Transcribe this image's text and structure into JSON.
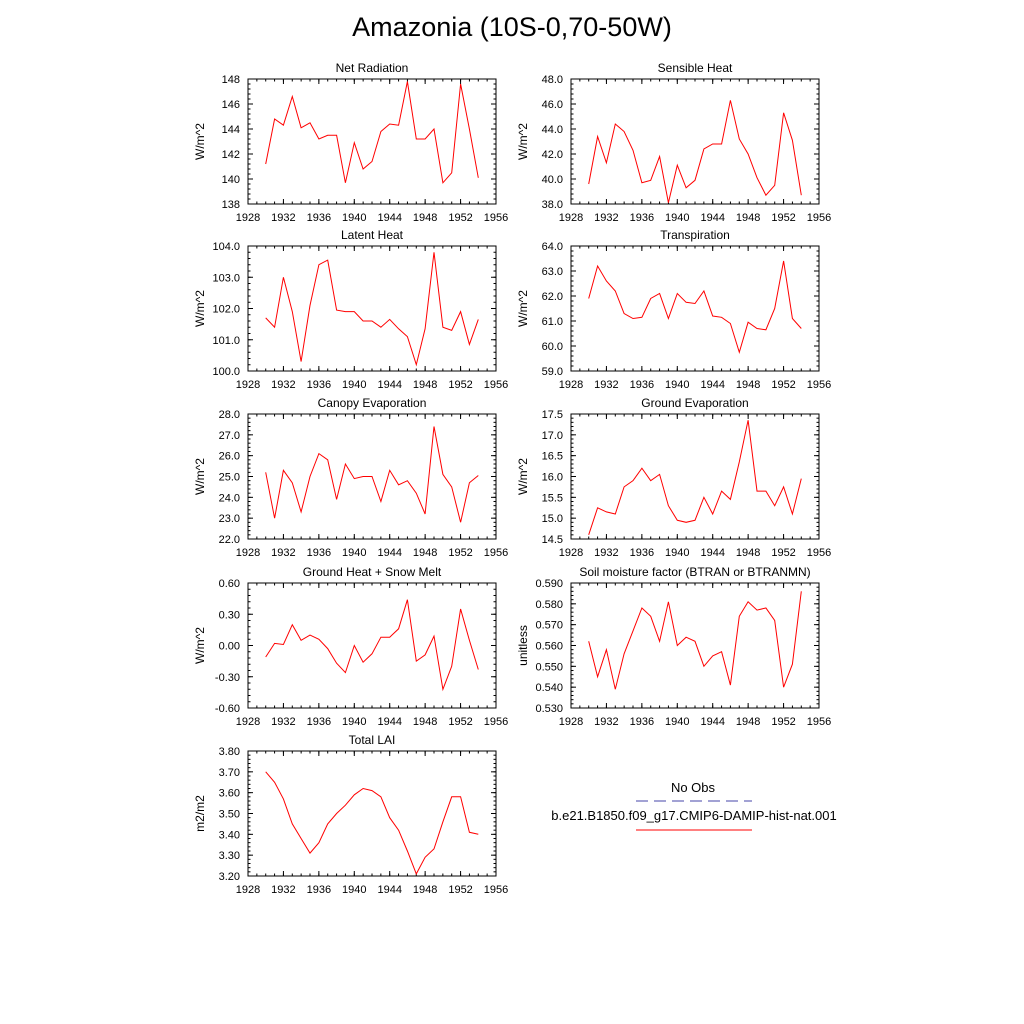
{
  "title": "Amazonia (10S-0,70-50W)",
  "colors": {
    "model": "#ff0000",
    "obs": "#4444aa",
    "axis": "#000000"
  },
  "legend": {
    "obs_label": "No Obs",
    "model_label": "b.e21.B1850.f09_g17.CMIP6-DAMIP-hist-nat.001"
  },
  "chart_data": [
    {
      "type": "line",
      "title": "Net Radiation",
      "ylabel": "W/m^2",
      "xlim": [
        1928,
        1956
      ],
      "ylim": [
        138,
        148
      ],
      "xticks": [
        "1928",
        "1932",
        "1936",
        "1940",
        "1944",
        "1948",
        "1952",
        "1956"
      ],
      "yticks": [
        "138",
        "140",
        "142",
        "144",
        "146",
        "148"
      ],
      "x": [
        1930,
        1931,
        1932,
        1933,
        1934,
        1935,
        1936,
        1937,
        1938,
        1939,
        1940,
        1941,
        1942,
        1943,
        1944,
        1945,
        1946,
        1947,
        1948,
        1949,
        1950,
        1951,
        1952,
        1953,
        1954
      ],
      "series": [
        {
          "values": [
            141.2,
            144.8,
            144.3,
            146.6,
            144.1,
            144.5,
            143.2,
            143.5,
            143.5,
            139.7,
            142.9,
            140.8,
            141.4,
            143.8,
            144.4,
            144.3,
            147.8,
            143.2,
            143.2,
            144.0,
            139.7,
            140.5,
            147.6,
            144.0,
            140.1
          ]
        }
      ]
    },
    {
      "type": "line",
      "title": "Sensible Heat",
      "ylabel": "W/m^2",
      "xlim": [
        1928,
        1956
      ],
      "ylim": [
        38,
        48
      ],
      "xticks": [
        "1928",
        "1932",
        "1936",
        "1940",
        "1944",
        "1948",
        "1952",
        "1956"
      ],
      "yticks": [
        "38.0",
        "40.0",
        "42.0",
        "44.0",
        "46.0",
        "48.0"
      ],
      "x": [
        1930,
        1931,
        1932,
        1933,
        1934,
        1935,
        1936,
        1937,
        1938,
        1939,
        1940,
        1941,
        1942,
        1943,
        1944,
        1945,
        1946,
        1947,
        1948,
        1949,
        1950,
        1951,
        1952,
        1953,
        1954
      ],
      "series": [
        {
          "values": [
            39.6,
            43.4,
            41.3,
            44.4,
            43.8,
            42.3,
            39.7,
            39.9,
            41.8,
            38.1,
            41.1,
            39.3,
            39.9,
            42.4,
            42.8,
            42.8,
            46.3,
            43.2,
            42.0,
            40.1,
            38.7,
            39.5,
            45.3,
            43.1,
            38.7
          ]
        }
      ]
    },
    {
      "type": "line",
      "title": "Latent Heat",
      "ylabel": "W/m^2",
      "xlim": [
        1928,
        1956
      ],
      "ylim": [
        100,
        104
      ],
      "xticks": [
        "1928",
        "1932",
        "1936",
        "1940",
        "1944",
        "1948",
        "1952",
        "1956"
      ],
      "yticks": [
        "100.0",
        "101.0",
        "102.0",
        "103.0",
        "104.0"
      ],
      "x": [
        1930,
        1931,
        1932,
        1933,
        1934,
        1935,
        1936,
        1937,
        1938,
        1939,
        1940,
        1941,
        1942,
        1943,
        1944,
        1945,
        1946,
        1947,
        1948,
        1949,
        1950,
        1951,
        1952,
        1953,
        1954
      ],
      "series": [
        {
          "values": [
            101.7,
            101.4,
            103.0,
            101.9,
            100.3,
            102.1,
            103.4,
            103.55,
            101.95,
            101.9,
            101.9,
            101.6,
            101.6,
            101.4,
            101.65,
            101.35,
            101.1,
            100.2,
            101.35,
            103.8,
            101.4,
            101.3,
            101.9,
            100.85,
            101.65
          ]
        }
      ]
    },
    {
      "type": "line",
      "title": "Transpiration",
      "ylabel": "W/m^2",
      "xlim": [
        1928,
        1956
      ],
      "ylim": [
        59,
        64
      ],
      "xticks": [
        "1928",
        "1932",
        "1936",
        "1940",
        "1944",
        "1948",
        "1952",
        "1956"
      ],
      "yticks": [
        "59.0",
        "60.0",
        "61.0",
        "62.0",
        "63.0",
        "64.0"
      ],
      "x": [
        1930,
        1931,
        1932,
        1933,
        1934,
        1935,
        1936,
        1937,
        1938,
        1939,
        1940,
        1941,
        1942,
        1943,
        1944,
        1945,
        1946,
        1947,
        1948,
        1949,
        1950,
        1951,
        1952,
        1953,
        1954
      ],
      "series": [
        {
          "values": [
            61.9,
            63.2,
            62.6,
            62.2,
            61.3,
            61.1,
            61.15,
            61.9,
            62.1,
            61.1,
            62.1,
            61.75,
            61.7,
            62.2,
            61.2,
            61.15,
            60.9,
            59.75,
            60.95,
            60.7,
            60.65,
            61.5,
            63.4,
            61.1,
            60.7
          ]
        }
      ]
    },
    {
      "type": "line",
      "title": "Canopy Evaporation",
      "ylabel": "W/m^2",
      "xlim": [
        1928,
        1956
      ],
      "ylim": [
        22,
        28
      ],
      "xticks": [
        "1928",
        "1932",
        "1936",
        "1940",
        "1944",
        "1948",
        "1952",
        "1956"
      ],
      "yticks": [
        "22.0",
        "23.0",
        "24.0",
        "25.0",
        "26.0",
        "27.0",
        "28.0"
      ],
      "x": [
        1930,
        1931,
        1932,
        1933,
        1934,
        1935,
        1936,
        1937,
        1938,
        1939,
        1940,
        1941,
        1942,
        1943,
        1944,
        1945,
        1946,
        1947,
        1948,
        1949,
        1950,
        1951,
        1952,
        1953,
        1954
      ],
      "series": [
        {
          "values": [
            25.2,
            23.0,
            25.3,
            24.7,
            23.3,
            25.0,
            26.1,
            25.8,
            23.9,
            25.6,
            24.9,
            25.0,
            25.0,
            23.8,
            25.3,
            24.6,
            24.8,
            24.2,
            23.2,
            27.4,
            25.1,
            24.5,
            22.8,
            24.7,
            25.05
          ]
        }
      ]
    },
    {
      "type": "line",
      "title": "Ground Evaporation",
      "ylabel": "W/m^2",
      "xlim": [
        1928,
        1956
      ],
      "ylim": [
        14.5,
        17.5
      ],
      "xticks": [
        "1928",
        "1932",
        "1936",
        "1940",
        "1944",
        "1948",
        "1952",
        "1956"
      ],
      "yticks": [
        "14.5",
        "15.0",
        "15.5",
        "16.0",
        "16.5",
        "17.0",
        "17.5"
      ],
      "x": [
        1930,
        1931,
        1932,
        1933,
        1934,
        1935,
        1936,
        1937,
        1938,
        1939,
        1940,
        1941,
        1942,
        1943,
        1944,
        1945,
        1946,
        1947,
        1948,
        1949,
        1950,
        1951,
        1952,
        1953,
        1954
      ],
      "series": [
        {
          "values": [
            14.6,
            15.25,
            15.15,
            15.1,
            15.75,
            15.9,
            16.2,
            15.9,
            16.05,
            15.3,
            14.95,
            14.9,
            14.95,
            15.5,
            15.1,
            15.65,
            15.45,
            16.35,
            17.35,
            15.65,
            15.65,
            15.3,
            15.75,
            15.1,
            15.95
          ]
        }
      ]
    },
    {
      "type": "line",
      "title": "Ground Heat + Snow Melt",
      "ylabel": "W/m^2",
      "xlim": [
        1928,
        1956
      ],
      "ylim": [
        -0.6,
        0.6
      ],
      "xticks": [
        "1928",
        "1932",
        "1936",
        "1940",
        "1944",
        "1948",
        "1952",
        "1956"
      ],
      "yticks": [
        "-0.60",
        "-0.30",
        "0.00",
        "0.30",
        "0.60"
      ],
      "x": [
        1930,
        1931,
        1932,
        1933,
        1934,
        1935,
        1936,
        1937,
        1938,
        1939,
        1940,
        1941,
        1942,
        1943,
        1944,
        1945,
        1946,
        1947,
        1948,
        1949,
        1950,
        1951,
        1952,
        1953,
        1954
      ],
      "series": [
        {
          "values": [
            -0.11,
            0.02,
            0.01,
            0.2,
            0.05,
            0.1,
            0.06,
            -0.03,
            -0.17,
            -0.26,
            0.0,
            -0.16,
            -0.08,
            0.08,
            0.08,
            0.16,
            0.44,
            -0.15,
            -0.09,
            0.09,
            -0.42,
            -0.2,
            0.35,
            0.05,
            -0.23
          ]
        }
      ]
    },
    {
      "type": "line",
      "title": "Soil moisture factor (BTRAN or BTRANMN)",
      "ylabel": "unitless",
      "xlim": [
        1928,
        1956
      ],
      "ylim": [
        0.53,
        0.59
      ],
      "xticks": [
        "1928",
        "1932",
        "1936",
        "1940",
        "1944",
        "1948",
        "1952",
        "1956"
      ],
      "yticks": [
        "0.530",
        "0.540",
        "0.550",
        "0.560",
        "0.570",
        "0.580",
        "0.590"
      ],
      "x": [
        1930,
        1931,
        1932,
        1933,
        1934,
        1935,
        1936,
        1937,
        1938,
        1939,
        1940,
        1941,
        1942,
        1943,
        1944,
        1945,
        1946,
        1947,
        1948,
        1949,
        1950,
        1951,
        1952,
        1953,
        1954
      ],
      "series": [
        {
          "values": [
            0.562,
            0.545,
            0.558,
            0.539,
            0.556,
            0.567,
            0.578,
            0.574,
            0.562,
            0.581,
            0.56,
            0.564,
            0.562,
            0.55,
            0.555,
            0.557,
            0.541,
            0.574,
            0.581,
            0.577,
            0.578,
            0.572,
            0.54,
            0.551,
            0.586
          ]
        }
      ]
    },
    {
      "type": "line",
      "title": "Total LAI",
      "ylabel": "m2/m2",
      "xlim": [
        1928,
        1956
      ],
      "ylim": [
        3.2,
        3.8
      ],
      "xticks": [
        "1928",
        "1932",
        "1936",
        "1940",
        "1944",
        "1948",
        "1952",
        "1956"
      ],
      "yticks": [
        "3.20",
        "3.30",
        "3.40",
        "3.50",
        "3.60",
        "3.70",
        "3.80"
      ],
      "x": [
        1930,
        1931,
        1932,
        1933,
        1934,
        1935,
        1936,
        1937,
        1938,
        1939,
        1940,
        1941,
        1942,
        1943,
        1944,
        1945,
        1946,
        1947,
        1948,
        1949,
        1950,
        1951,
        1952,
        1953,
        1954
      ],
      "series": [
        {
          "values": [
            3.7,
            3.65,
            3.57,
            3.45,
            3.38,
            3.31,
            3.36,
            3.45,
            3.5,
            3.54,
            3.59,
            3.62,
            3.61,
            3.58,
            3.48,
            3.42,
            3.32,
            3.21,
            3.29,
            3.33,
            3.46,
            3.58,
            3.58,
            3.41,
            3.4
          ]
        }
      ]
    }
  ]
}
